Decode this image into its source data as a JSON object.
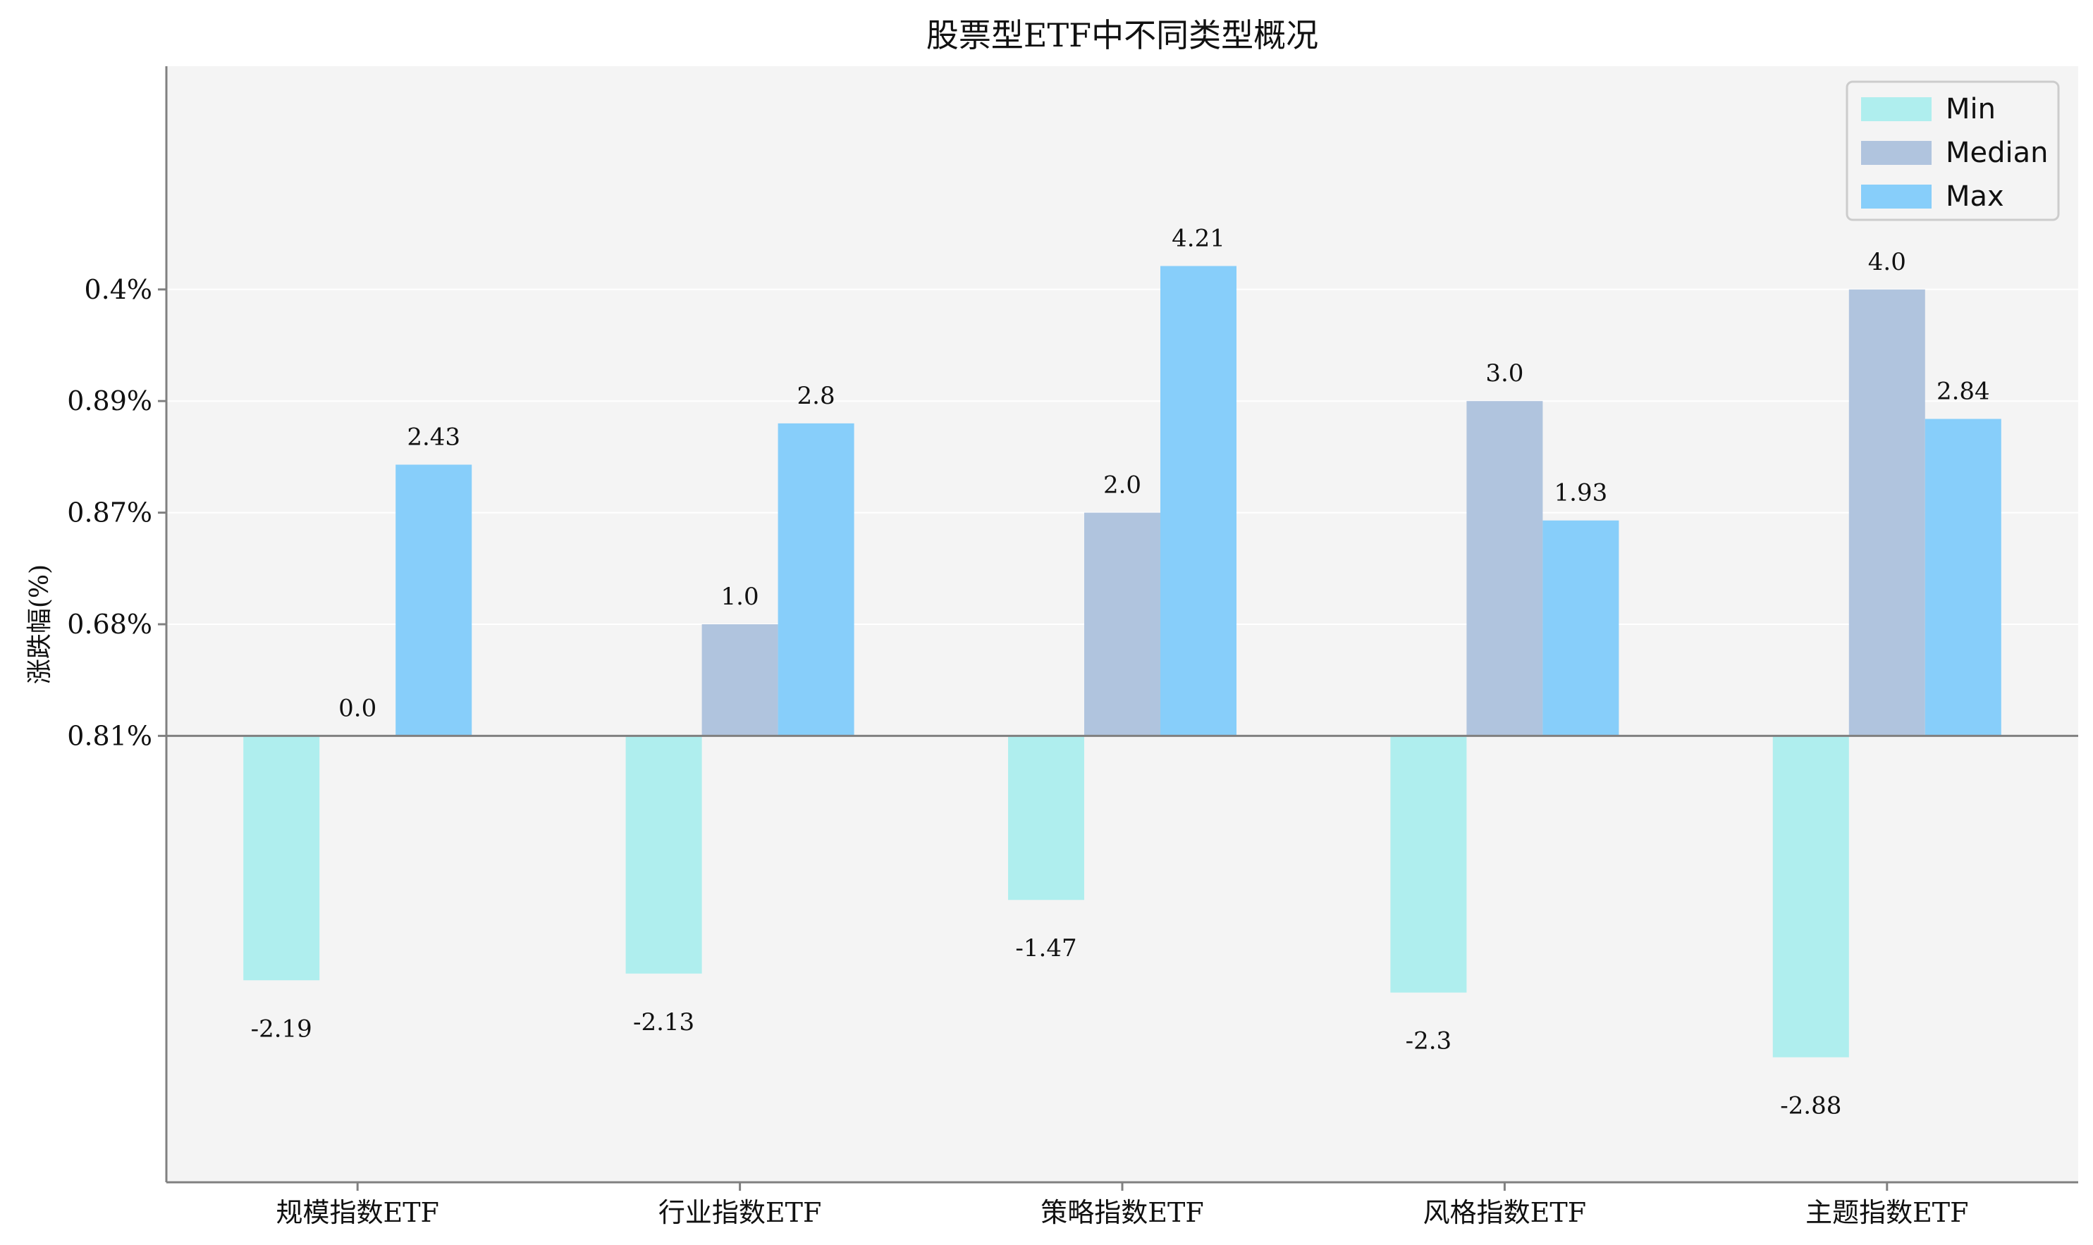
{
  "chart_data": {
    "type": "bar",
    "title": "股票型ETF中不同类型概况",
    "xlabel": "",
    "ylabel": "涨跌幅(%)",
    "categories": [
      "规模指数ETF",
      "行业指数ETF",
      "策略指数ETF",
      "风格指数ETF",
      "主题指数ETF"
    ],
    "series": [
      {
        "name": "Min",
        "color": "#afeeee",
        "values": [
          -2.19,
          -2.13,
          -1.47,
          -2.3,
          -2.88
        ]
      },
      {
        "name": "Median",
        "color": "#b0c4de",
        "values": [
          0.0,
          1.0,
          2.0,
          3.0,
          4.0
        ]
      },
      {
        "name": "Max",
        "color": "#87cefa",
        "values": [
          2.43,
          2.8,
          4.21,
          1.93,
          2.84
        ]
      }
    ],
    "data_labels": [
      [
        "-2.19",
        "-2.13",
        "-1.47",
        "-2.3",
        "-2.88"
      ],
      [
        "0.0",
        "1.0",
        "2.0",
        "3.0",
        "4.0"
      ],
      [
        "2.43",
        "2.8",
        "4.21",
        "1.93",
        "2.84"
      ]
    ],
    "ylim": [
      -4,
      6
    ],
    "yticks": [
      0,
      1,
      2,
      3,
      4
    ],
    "ytick_labels": [
      "0.81%",
      "0.68%",
      "0.87%",
      "0.89%",
      "0.4%"
    ],
    "grid": "horizontal",
    "legend_position": "top-right",
    "colors": {
      "plot_bg": "#f4f4f4",
      "axis": "#808080",
      "grid": "#ffffff"
    }
  }
}
